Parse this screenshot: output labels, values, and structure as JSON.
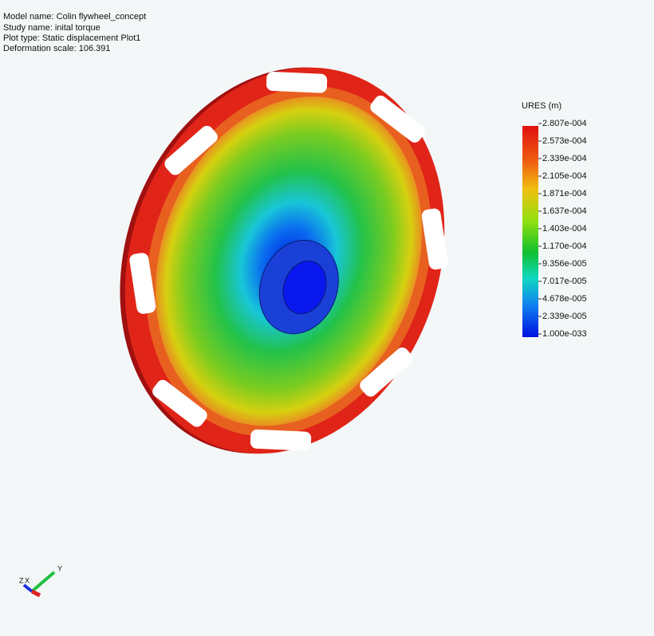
{
  "info": {
    "model": "Model name: Colin flywheel_concept",
    "study": "Study name: inital torque",
    "plot_type": "Plot type: Static displacement Plot1",
    "scale": "Deformation scale: 106.391"
  },
  "legend": {
    "title": "URES (m)",
    "labels": [
      "2.807e-004",
      "2.573e-004",
      "2.339e-004",
      "2.105e-004",
      "1.871e-004",
      "1.637e-004",
      "1.403e-004",
      "1.170e-004",
      "9.356e-005",
      "7.017e-005",
      "4.678e-005",
      "2.339e-005",
      "1.000e-033"
    ]
  },
  "triad": {
    "z": "Z",
    "x": "X",
    "y": "Y"
  }
}
